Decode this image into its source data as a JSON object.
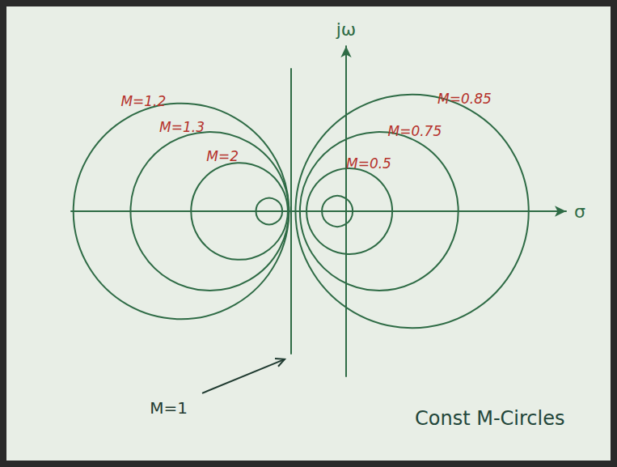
{
  "chart_data": {
    "type": "circles",
    "title": "Const M-Circles",
    "x_label": "σ",
    "y_label": "jω",
    "xlim": [
      -2.5,
      2
    ],
    "ylim": [
      -1.5,
      1.5
    ],
    "tick_labels": false,
    "grid": false,
    "color": "#2e6b45",
    "circles": [
      {
        "name": "M=1.2",
        "center": [
          -1.5,
          0
        ],
        "radius": 0.98
      },
      {
        "name": "M=1.3",
        "center": [
          -1.24,
          0
        ],
        "radius": 0.72
      },
      {
        "name": "M=2",
        "center": [
          -0.97,
          0
        ],
        "radius": 0.44
      },
      {
        "center": [
          -0.7,
          0
        ],
        "radius": 0.12
      },
      {
        "name": "M=0.85",
        "center": [
          0.6,
          0
        ],
        "radius": 1.06
      },
      {
        "name": "M=0.75",
        "center": [
          0.3,
          0
        ],
        "radius": 0.72
      },
      {
        "name": "M=0.5",
        "center": [
          0.03,
          0
        ],
        "radius": 0.39
      },
      {
        "center": [
          -0.08,
          0
        ],
        "radius": 0.14
      }
    ],
    "lines": [
      {
        "name": "M=1",
        "x": [
          -0.5,
          -0.5
        ],
        "values": [
          1.3,
          -1.3
        ]
      }
    ]
  }
}
